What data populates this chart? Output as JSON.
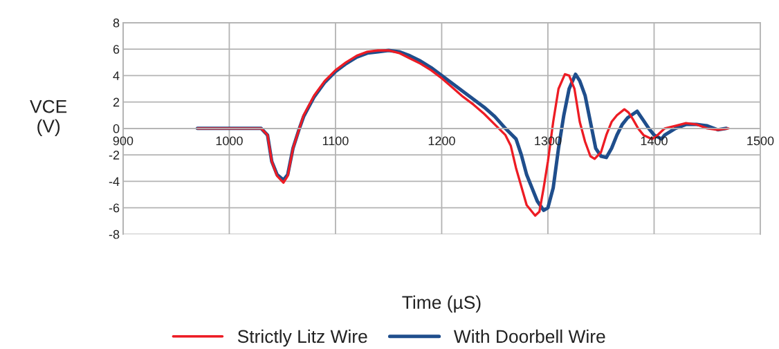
{
  "chart_data": {
    "type": "line",
    "xlabel": "Time (µS)",
    "ylabel": "VCE\n(V)",
    "xlim": [
      900,
      1500
    ],
    "xticks": [
      900,
      1000,
      1100,
      1200,
      1300,
      1400,
      1500
    ],
    "ylim": [
      -8,
      8
    ],
    "yticks": [
      -8,
      -6,
      -4,
      -2,
      0,
      2,
      4,
      6,
      8
    ],
    "grid": true,
    "legend": "bottom",
    "marker": "none",
    "line_style": "solid",
    "series": [
      {
        "name": "Strictly Litz Wire",
        "color": "#ed1c24",
        "x": [
          970,
          1000,
          1030,
          1036,
          1040,
          1045,
          1051,
          1055,
          1060,
          1066,
          1070,
          1080,
          1090,
          1100,
          1110,
          1120,
          1130,
          1140,
          1150,
          1160,
          1170,
          1180,
          1190,
          1200,
          1210,
          1220,
          1230,
          1240,
          1250,
          1260,
          1265,
          1270,
          1280,
          1288,
          1292,
          1296,
          1300,
          1305,
          1310,
          1316,
          1320,
          1325,
          1330,
          1335,
          1340,
          1344,
          1350,
          1355,
          1360,
          1365,
          1372,
          1376,
          1380,
          1385,
          1390,
          1398,
          1402,
          1410,
          1420,
          1430,
          1440,
          1450,
          1460,
          1470
        ],
        "values": [
          0,
          0,
          0,
          -0.5,
          -2.5,
          -3.6,
          -4.1,
          -3.6,
          -1.5,
          0,
          1.0,
          2.5,
          3.6,
          4.4,
          5.0,
          5.5,
          5.8,
          5.9,
          5.9,
          5.7,
          5.3,
          4.9,
          4.4,
          3.8,
          3.1,
          2.4,
          1.8,
          1.1,
          0.3,
          -0.5,
          -1.3,
          -3.0,
          -5.8,
          -6.6,
          -6.3,
          -4.5,
          -2.5,
          0.5,
          3.0,
          4.1,
          4.0,
          3.0,
          0.5,
          -1.0,
          -2.1,
          -2.3,
          -1.8,
          -0.5,
          0.5,
          1.0,
          1.45,
          1.2,
          0.7,
          0.0,
          -0.5,
          -0.8,
          -0.6,
          0.0,
          0.2,
          0.4,
          0.3,
          0.0,
          -0.1,
          0
        ]
      },
      {
        "name": "With Doorbell Wire",
        "color": "#1f4e8c",
        "x": [
          970,
          1000,
          1030,
          1036,
          1040,
          1045,
          1051,
          1055,
          1060,
          1066,
          1070,
          1080,
          1090,
          1100,
          1110,
          1120,
          1130,
          1140,
          1150,
          1160,
          1170,
          1180,
          1190,
          1200,
          1210,
          1220,
          1230,
          1240,
          1250,
          1260,
          1270,
          1275,
          1280,
          1290,
          1296,
          1300,
          1305,
          1310,
          1315,
          1320,
          1326,
          1330,
          1335,
          1340,
          1345,
          1350,
          1355,
          1360,
          1365,
          1370,
          1375,
          1384,
          1390,
          1395,
          1400,
          1407,
          1410,
          1420,
          1430,
          1440,
          1450,
          1460,
          1468
        ],
        "values": [
          0,
          0,
          0,
          -0.5,
          -2.5,
          -3.5,
          -3.9,
          -3.5,
          -1.5,
          0,
          0.9,
          2.4,
          3.5,
          4.3,
          4.9,
          5.4,
          5.7,
          5.8,
          5.9,
          5.8,
          5.5,
          5.1,
          4.6,
          4.0,
          3.4,
          2.8,
          2.2,
          1.6,
          0.9,
          0.0,
          -0.8,
          -2.0,
          -3.5,
          -5.5,
          -6.2,
          -6.0,
          -4.5,
          -1.5,
          1.0,
          3.0,
          4.1,
          3.6,
          2.5,
          0.5,
          -1.5,
          -2.1,
          -2.2,
          -1.5,
          -0.5,
          0.3,
          0.8,
          1.3,
          0.6,
          0.0,
          -0.5,
          -0.8,
          -0.5,
          0.0,
          0.3,
          0.3,
          0.2,
          -0.1,
          0
        ]
      }
    ]
  }
}
